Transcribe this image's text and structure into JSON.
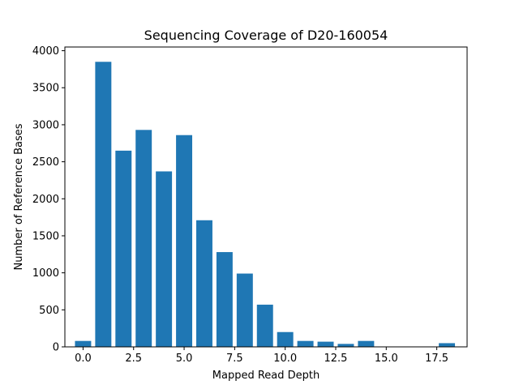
{
  "chart_data": {
    "type": "bar",
    "title": "Sequencing Coverage of D20-160054",
    "xlabel": "Mapped Read Depth",
    "ylabel": "Number of Reference Bases",
    "x": [
      0,
      1,
      2,
      3,
      4,
      5,
      6,
      7,
      8,
      9,
      10,
      11,
      12,
      13,
      14,
      15,
      16,
      17,
      18
    ],
    "values": [
      80,
      3850,
      2650,
      2930,
      2370,
      2860,
      1710,
      1280,
      990,
      570,
      200,
      80,
      70,
      40,
      80,
      0,
      0,
      0,
      50
    ],
    "xlim": [
      -0.9,
      19.0
    ],
    "ylim": [
      0,
      4050
    ],
    "xticks": [
      0.0,
      2.5,
      5.0,
      7.5,
      10.0,
      12.5,
      15.0,
      17.5
    ],
    "xtick_labels": [
      "0.0",
      "2.5",
      "5.0",
      "7.5",
      "10.0",
      "12.5",
      "15.0",
      "17.5"
    ],
    "yticks": [
      0,
      500,
      1000,
      1500,
      2000,
      2500,
      3000,
      3500,
      4000
    ],
    "ytick_labels": [
      "0",
      "500",
      "1000",
      "1500",
      "2000",
      "2500",
      "3000",
      "3500",
      "4000"
    ],
    "bar_color": "#1f77b4",
    "grid": false,
    "legend": "none"
  }
}
